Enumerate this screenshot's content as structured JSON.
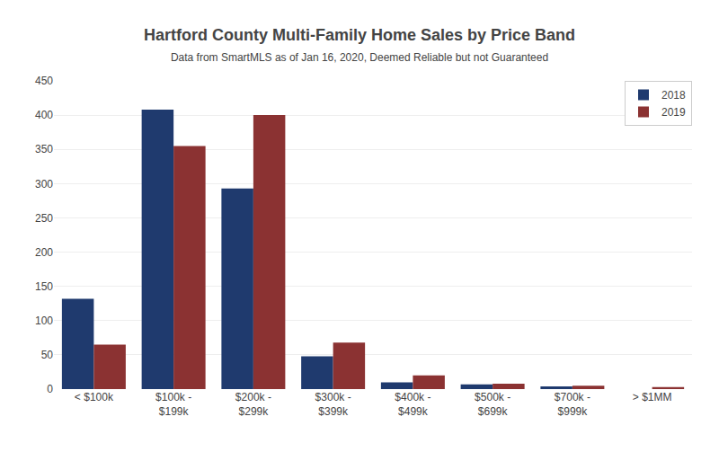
{
  "chart_data": {
    "type": "bar",
    "title": "Hartford County Multi-Family Home Sales by Price Band",
    "subtitle": "Data from SmartMLS as of Jan 16, 2020, Deemed Reliable but not Guaranteed",
    "categories": [
      "< $100k",
      "$100k -\n$199k",
      "$200k -\n$299k",
      "$300k -\n$399k",
      "$400k -\n$499k",
      "$500k -\n$699k",
      "$700k -\n$999k",
      "> $1MM"
    ],
    "series": [
      {
        "name": "2018",
        "color": "#1F3A6E",
        "values": [
          132,
          408,
          293,
          48,
          10,
          7,
          4,
          0
        ]
      },
      {
        "name": "2019",
        "color": "#8B3232",
        "values": [
          65,
          355,
          400,
          68,
          20,
          8,
          5,
          3
        ]
      }
    ],
    "ylim": [
      0,
      450
    ],
    "yticks": [
      0,
      50,
      100,
      150,
      200,
      250,
      300,
      350,
      400,
      450
    ],
    "grid": true,
    "legend": "upper right"
  }
}
